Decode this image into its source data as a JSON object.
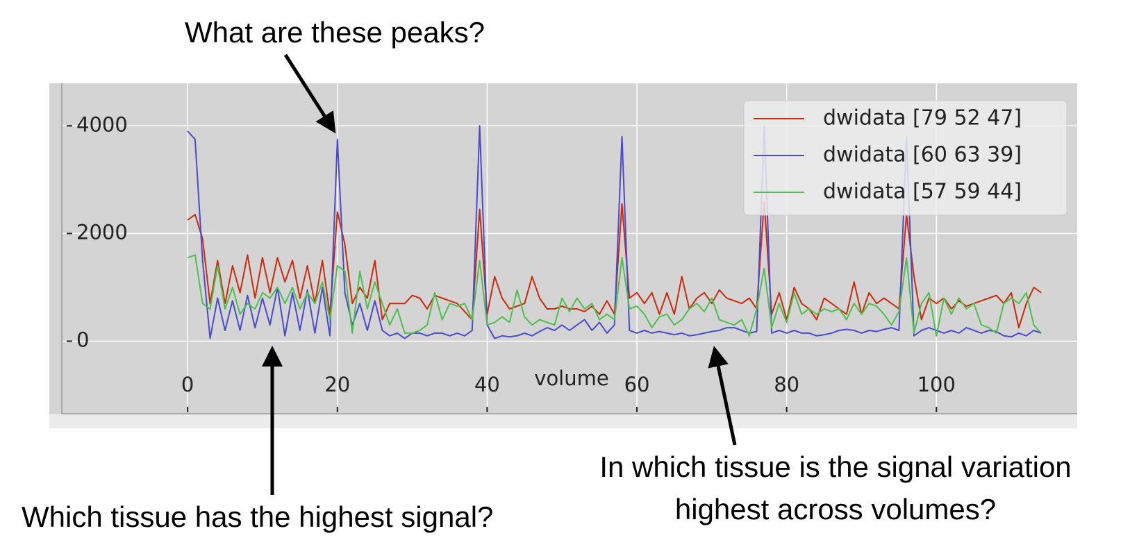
{
  "chart_data": {
    "type": "line",
    "x_label": "volume",
    "x": [
      0,
      1,
      2,
      3,
      4,
      5,
      6,
      7,
      8,
      9,
      10,
      11,
      12,
      13,
      14,
      15,
      16,
      17,
      18,
      19,
      20,
      21,
      22,
      23,
      24,
      25,
      26,
      27,
      28,
      29,
      30,
      31,
      32,
      33,
      34,
      35,
      36,
      37,
      38,
      39,
      40,
      41,
      42,
      43,
      44,
      45,
      46,
      47,
      48,
      49,
      50,
      51,
      52,
      53,
      54,
      55,
      56,
      57,
      58,
      59,
      60,
      61,
      62,
      63,
      64,
      65,
      66,
      67,
      68,
      69,
      70,
      71,
      72,
      73,
      74,
      75,
      76,
      77,
      78,
      79,
      80,
      81,
      82,
      83,
      84,
      85,
      86,
      87,
      88,
      89,
      90,
      91,
      92,
      93,
      94,
      95,
      96,
      97,
      98,
      99,
      100,
      101,
      102,
      103,
      104,
      105,
      106,
      107,
      108,
      109,
      110,
      111,
      112,
      113,
      114
    ],
    "series": [
      {
        "name": "dwidata [79 52 47]",
        "color": "#cc2a0a",
        "values": [
          2250,
          2350,
          1900,
          700,
          1500,
          700,
          1400,
          900,
          1600,
          800,
          1550,
          900,
          1550,
          1100,
          1500,
          800,
          1400,
          700,
          1500,
          500,
          2400,
          1800,
          700,
          1000,
          800,
          1500,
          400,
          700,
          700,
          700,
          850,
          800,
          600,
          850,
          800,
          750,
          700,
          550,
          400,
          2450,
          500,
          1200,
          800,
          600,
          650,
          700,
          1200,
          800,
          600,
          600,
          650,
          600,
          600,
          550,
          650,
          500,
          750,
          500,
          2550,
          800,
          900,
          700,
          900,
          500,
          900,
          500,
          1200,
          600,
          800,
          900,
          700,
          950,
          800,
          750,
          700,
          800,
          600,
          2600,
          500,
          900,
          400,
          1000,
          700,
          600,
          400,
          800,
          700,
          600,
          500,
          1100,
          500,
          900,
          700,
          800,
          700,
          600,
          2350,
          1200,
          400,
          800,
          700,
          800,
          600,
          750,
          650,
          700,
          750,
          800,
          850,
          700,
          900,
          250,
          700,
          1000,
          900
        ]
      },
      {
        "name": "dwidata [60 63 39]",
        "color": "#4a4ad0",
        "values": [
          3900,
          3750,
          1500,
          50,
          800,
          200,
          750,
          200,
          850,
          250,
          800,
          300,
          1000,
          100,
          900,
          200,
          950,
          150,
          1000,
          100,
          3750,
          900,
          300,
          700,
          200,
          750,
          200,
          100,
          150,
          50,
          150,
          150,
          100,
          150,
          150,
          100,
          150,
          100,
          200,
          4000,
          300,
          50,
          100,
          80,
          100,
          150,
          100,
          180,
          250,
          200,
          300,
          200,
          300,
          400,
          200,
          350,
          150,
          300,
          3800,
          200,
          150,
          200,
          150,
          180,
          150,
          120,
          150,
          100,
          120,
          150,
          180,
          200,
          250,
          250,
          200,
          150,
          180,
          4000,
          150,
          200,
          150,
          200,
          150,
          150,
          100,
          120,
          150,
          200,
          220,
          200,
          150,
          200,
          180,
          220,
          250,
          200,
          3800,
          100,
          200,
          250,
          200,
          150,
          200,
          150,
          250,
          200,
          150,
          200,
          180,
          100,
          80,
          150,
          100,
          200,
          150
        ]
      },
      {
        "name": "dwidata [57 59 44]",
        "color": "#4cc04c",
        "values": [
          1550,
          1600,
          700,
          600,
          1400,
          600,
          1000,
          500,
          700,
          600,
          900,
          800,
          1000,
          700,
          1000,
          600,
          900,
          700,
          1100,
          400,
          1400,
          1300,
          150,
          1300,
          600,
          1100,
          700,
          300,
          600,
          150,
          150,
          200,
          300,
          900,
          400,
          700,
          650,
          700,
          400,
          1500,
          300,
          350,
          450,
          350,
          950,
          450,
          300,
          400,
          350,
          300,
          800,
          550,
          800,
          600,
          700,
          400,
          500,
          400,
          1550,
          600,
          650,
          500,
          250,
          450,
          500,
          300,
          400,
          600,
          700,
          550,
          800,
          400,
          350,
          300,
          400,
          100,
          600,
          1350,
          250,
          700,
          350,
          900,
          500,
          600,
          500,
          600,
          550,
          600,
          400,
          700,
          500,
          700,
          650,
          500,
          300,
          550,
          1550,
          150,
          700,
          900,
          100,
          800,
          500,
          800,
          600,
          700,
          300,
          250,
          150,
          700,
          800,
          700,
          900,
          300,
          150
        ]
      }
    ],
    "xlim": [
      -16.8,
      118.8
    ],
    "xticks": [
      0,
      20,
      40,
      60,
      80,
      100
    ],
    "ylim": [
      -1360,
      4790
    ],
    "yticks": [
      0,
      2000,
      4000
    ],
    "grid": true,
    "legend": "upper right",
    "annotations": [
      "What are these peaks?",
      "Which tissue has the highest signal?",
      "In which tissue is the signal variation",
      "highest across volumes?"
    ]
  }
}
